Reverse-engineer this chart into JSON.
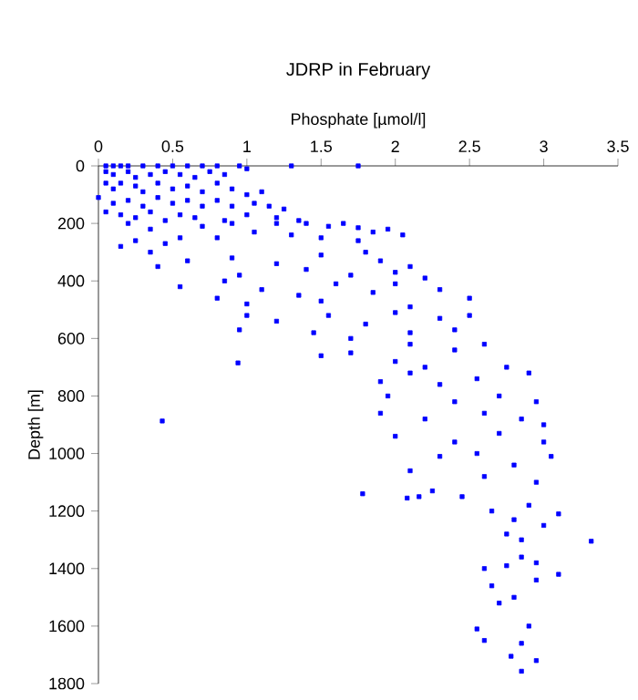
{
  "chart_data": {
    "type": "scatter",
    "title": "JDRP in February",
    "xlabel": "Phosphate [µmol/l]",
    "ylabel": "Depth [m]",
    "xlim": [
      0,
      3.5
    ],
    "xticks": [
      0,
      0.5,
      1,
      1.5,
      2,
      2.5,
      3,
      3.5
    ],
    "ylim": [
      1800,
      0
    ],
    "yticks": [
      0,
      200,
      400,
      600,
      800,
      1000,
      1200,
      1400,
      1600,
      1800
    ],
    "marker": "square",
    "grid": false,
    "series": [
      {
        "color": "#0000ff",
        "x": [
          0.05,
          0.1,
          0.15,
          0.2,
          0.3,
          0.4,
          0.5,
          0.6,
          0.7,
          0.8,
          0.95,
          1.0,
          1.3,
          1.75,
          0.05,
          0.1,
          0.2,
          0.25,
          0.35,
          0.45,
          0.55,
          0.65,
          0.75,
          0.85,
          0.05,
          0.1,
          0.15,
          0.25,
          0.3,
          0.4,
          0.5,
          0.6,
          0.7,
          0.8,
          0.9,
          1.0,
          1.1,
          0.0,
          0.1,
          0.2,
          0.3,
          0.4,
          0.5,
          0.6,
          0.7,
          0.8,
          0.9,
          1.05,
          1.15,
          1.25,
          0.05,
          0.15,
          0.25,
          0.35,
          0.45,
          0.55,
          0.65,
          0.85,
          1.0,
          1.2,
          1.35,
          0.2,
          0.35,
          0.55,
          0.7,
          0.9,
          1.05,
          1.2,
          1.4,
          1.55,
          1.65,
          1.75,
          1.85,
          1.95,
          2.05,
          0.25,
          0.45,
          0.8,
          1.3,
          1.5,
          1.75,
          0.15,
          0.35,
          0.6,
          0.9,
          1.2,
          1.5,
          1.8,
          1.9,
          2.1,
          0.4,
          0.95,
          1.4,
          1.7,
          2.2,
          2.0,
          0.55,
          0.85,
          1.1,
          1.35,
          1.6,
          1.85,
          2.0,
          2.3,
          2.5,
          1.0,
          1.5,
          2.1,
          0.8,
          1.0,
          1.2,
          1.55,
          1.8,
          2.0,
          2.3,
          2.5,
          2.1,
          1.45,
          2.4,
          0.95,
          1.7,
          0.94,
          1.7,
          2.1,
          2.4,
          2.6,
          2.0,
          2.2,
          1.5,
          1.9,
          2.1,
          2.3,
          2.55,
          2.75,
          2.9,
          1.95,
          2.4,
          2.7,
          2.95,
          1.9,
          2.2,
          2.6,
          2.85,
          3.0,
          0.43,
          2.0,
          2.4,
          2.7,
          3.0,
          2.3,
          2.55,
          2.8,
          3.05,
          2.1,
          2.6,
          2.95,
          1.78,
          2.08,
          2.16,
          2.25,
          2.45,
          2.65,
          2.8,
          2.9,
          3.0,
          3.1,
          2.75,
          2.85,
          3.32,
          2.6,
          2.75,
          2.85,
          2.95,
          3.1,
          2.65,
          2.8,
          2.95,
          2.7,
          2.55,
          2.6,
          2.9,
          2.85,
          2.78,
          2.85,
          2.95
        ],
        "values": [
          0,
          0,
          0,
          0,
          0,
          0,
          0,
          0,
          0,
          0,
          0,
          10,
          0,
          0,
          20,
          30,
          20,
          40,
          30,
          20,
          30,
          40,
          20,
          30,
          60,
          80,
          60,
          70,
          90,
          60,
          80,
          70,
          90,
          60,
          80,
          100,
          90,
          110,
          130,
          120,
          140,
          110,
          130,
          120,
          140,
          120,
          140,
          130,
          140,
          150,
          160,
          170,
          180,
          160,
          190,
          170,
          180,
          190,
          170,
          180,
          190,
          200,
          220,
          250,
          210,
          200,
          230,
          200,
          200,
          210,
          200,
          215,
          230,
          220,
          240,
          260,
          270,
          250,
          240,
          250,
          260,
          280,
          300,
          330,
          320,
          340,
          310,
          300,
          330,
          350,
          350,
          380,
          360,
          380,
          390,
          370,
          420,
          400,
          430,
          450,
          410,
          440,
          410,
          430,
          460,
          480,
          470,
          490,
          460,
          520,
          540,
          520,
          550,
          510,
          530,
          520,
          580,
          580,
          570,
          570,
          600,
          685,
          650,
          620,
          640,
          620,
          680,
          700,
          660,
          750,
          720,
          760,
          740,
          700,
          720,
          800,
          820,
          800,
          820,
          860,
          880,
          860,
          880,
          900,
          887,
          940,
          960,
          930,
          960,
          1010,
          1000,
          1040,
          1010,
          1060,
          1080,
          1100,
          1140,
          1155,
          1150,
          1130,
          1150,
          1200,
          1230,
          1180,
          1250,
          1210,
          1280,
          1300,
          1305,
          1400,
          1390,
          1360,
          1380,
          1420,
          1460,
          1500,
          1440,
          1520,
          1610,
          1650,
          1600,
          1660,
          1705,
          1757,
          1720
        ]
      }
    ]
  }
}
